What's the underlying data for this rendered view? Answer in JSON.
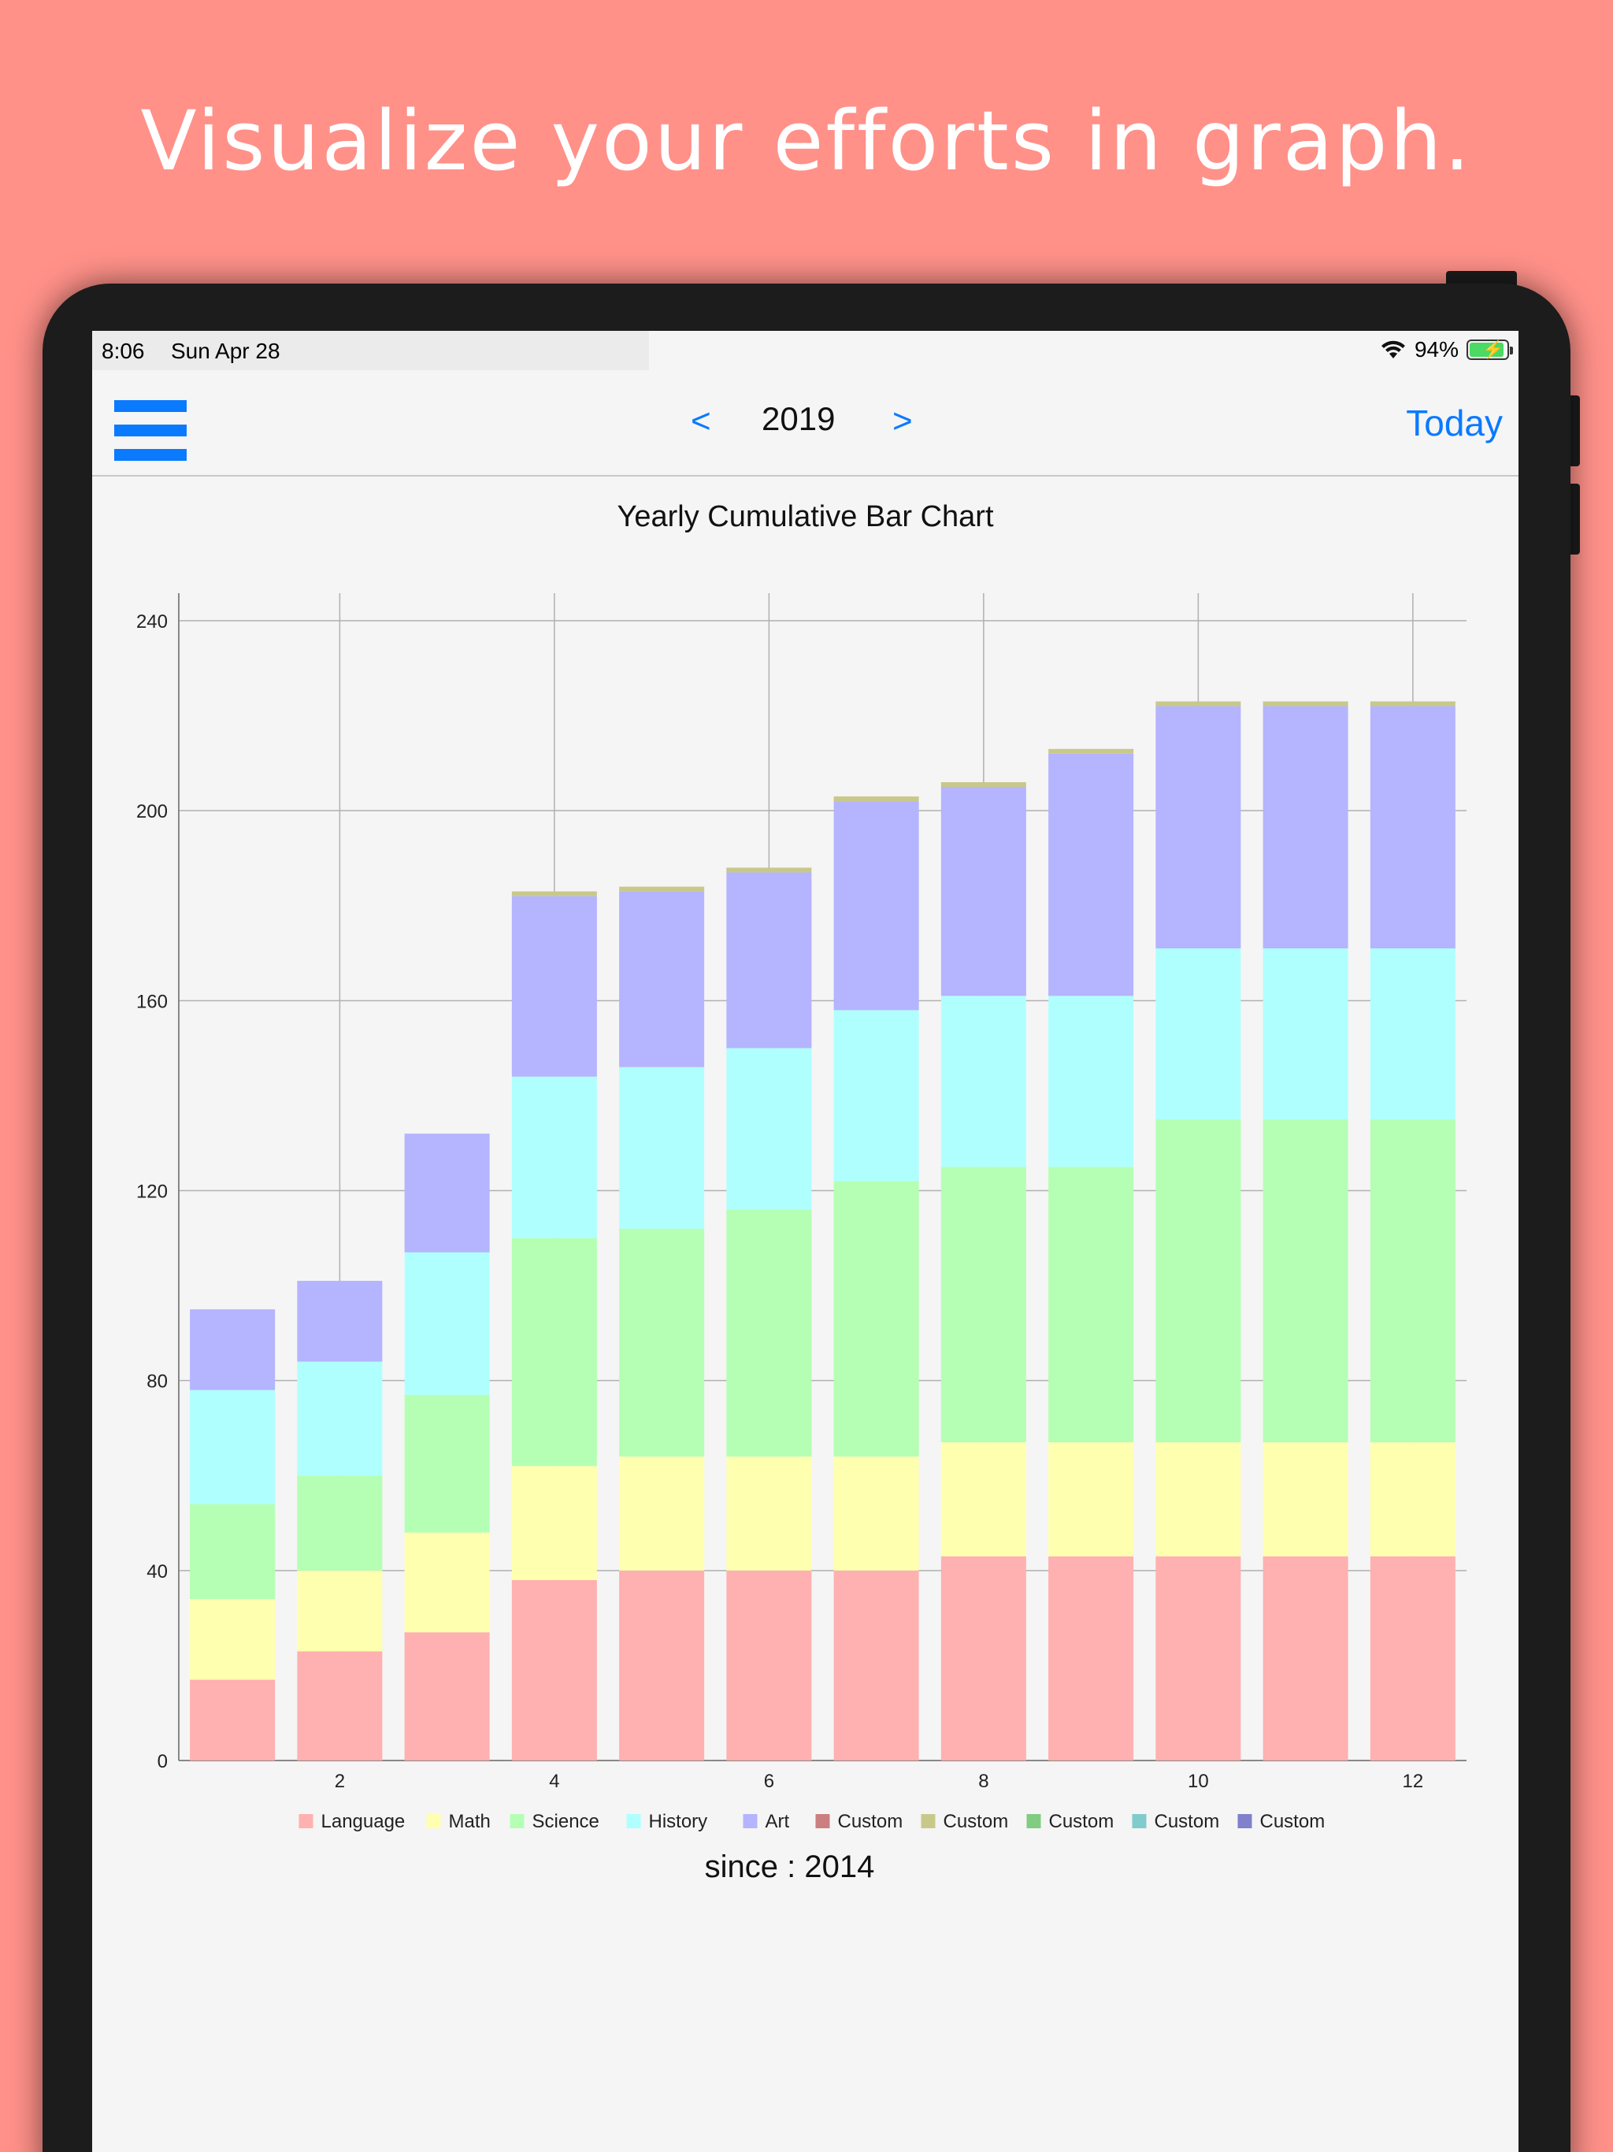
{
  "headline": "Visualize your efforts in graph.",
  "status": {
    "time": "8:06",
    "date": "Sun Apr 28",
    "battery": "94%",
    "battery_level": 0.94
  },
  "nav": {
    "prev": "<",
    "year": "2019",
    "next": ">",
    "today": "Today"
  },
  "colors": {
    "accent": "#0a7aff",
    "background": "#ff9189"
  },
  "icons": {
    "menu": "hamburger-menu-icon",
    "wifi": "wifi-icon",
    "battery": "battery-charging-icon"
  },
  "chart_data": {
    "type": "bar",
    "stacked": true,
    "title": "Yearly Cumulative Bar Chart",
    "x": [
      1,
      2,
      3,
      4,
      5,
      6,
      7,
      8,
      9,
      10,
      11,
      12
    ],
    "x_tick_labels": [
      "2",
      "4",
      "6",
      "8",
      "10",
      "12"
    ],
    "x_tick_values": [
      2,
      4,
      6,
      8,
      10,
      12
    ],
    "y_tick_labels": [
      "0",
      "40",
      "80",
      "120",
      "160",
      "200",
      "240"
    ],
    "y_tick_values": [
      0,
      40,
      80,
      120,
      160,
      200,
      240
    ],
    "ylim": [
      0,
      240
    ],
    "grid": true,
    "legend_position": "bottom",
    "series": [
      {
        "name": "Language",
        "color": "#ffb0b0",
        "values": [
          17,
          23,
          27,
          38,
          40,
          40,
          40,
          43,
          43,
          43,
          43,
          43
        ]
      },
      {
        "name": "Math",
        "color": "#ffffb0",
        "values": [
          17,
          17,
          21,
          24,
          24,
          24,
          24,
          24,
          24,
          24,
          24,
          24
        ]
      },
      {
        "name": "Science",
        "color": "#b4ffb4",
        "values": [
          20,
          20,
          29,
          48,
          48,
          52,
          58,
          58,
          58,
          68,
          68,
          68
        ]
      },
      {
        "name": "History",
        "color": "#b0ffff",
        "values": [
          24,
          24,
          30,
          34,
          34,
          34,
          36,
          36,
          36,
          36,
          36,
          36
        ]
      },
      {
        "name": "Art",
        "color": "#b4b4ff",
        "values": [
          17,
          17,
          25,
          38,
          37,
          37,
          44,
          44,
          51,
          51,
          51,
          51
        ]
      },
      {
        "name": "Custom",
        "color": "#cc7f7f",
        "values": [
          0,
          0,
          0,
          0,
          0,
          0,
          0,
          0,
          0,
          0,
          0,
          0
        ]
      },
      {
        "name": "Custom",
        "color": "#c8c88a",
        "values": [
          0,
          0,
          0,
          1,
          1,
          1,
          1,
          1,
          1,
          1,
          1,
          1
        ]
      },
      {
        "name": "Custom",
        "color": "#80cc80",
        "values": [
          0,
          0,
          0,
          0,
          0,
          0,
          0,
          0,
          0,
          0,
          0,
          0
        ]
      },
      {
        "name": "Custom",
        "color": "#80cccc",
        "values": [
          0,
          0,
          0,
          0,
          0,
          0,
          0,
          0,
          0,
          0,
          0,
          0
        ]
      },
      {
        "name": "Custom",
        "color": "#8080cc",
        "values": [
          0,
          0,
          0,
          0,
          0,
          0,
          0,
          0,
          0,
          0,
          0,
          0
        ]
      }
    ]
  },
  "footer": {
    "since": "since : 2014"
  }
}
